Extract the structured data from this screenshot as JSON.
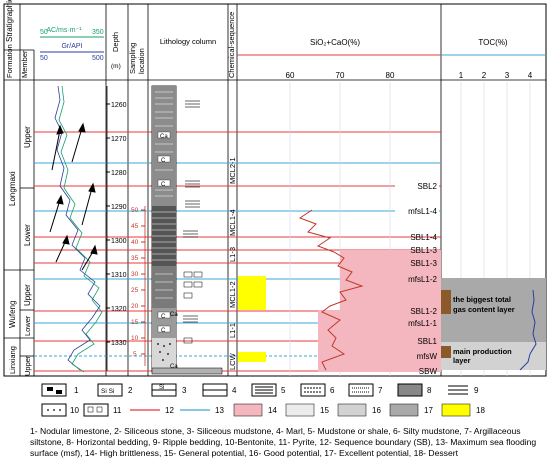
{
  "headers": {
    "stratigraphic_system": "Stratigraphic system",
    "formation": "Formation",
    "member": "Member",
    "ac_label": "AC/ms·m⁻¹",
    "ac_min": "50",
    "ac_max": "350",
    "gr_label": "Gr/API",
    "gr_min": "50",
    "gr_max": "500",
    "depth": "Depth",
    "depth_unit": "(m)",
    "sampling": "Sampling location",
    "lithology": "Lithology column",
    "chemical_sequence": "Chemical-sequence",
    "sio2": "SiO₂+CaO(%)",
    "toc": "TOC(%)"
  },
  "sio2_ticks": [
    "60",
    "70",
    "80"
  ],
  "toc_ticks": [
    "1",
    "2",
    "3",
    "4"
  ],
  "formations": [
    "Longmaxi",
    "Wufeng",
    "Linxiang"
  ],
  "members": [
    "Upper",
    "Lower",
    "Upper",
    "Lower",
    "Upper"
  ],
  "depth_ticks": [
    "1260",
    "1270",
    "1280",
    "1290",
    "1300",
    "1310",
    "1320",
    "1330"
  ],
  "sample_ticks": [
    "50",
    "45",
    "40",
    "35",
    "30",
    "25",
    "20",
    "15",
    "10",
    "5"
  ],
  "sequences": [
    "MCL2-1",
    "MCL1-4",
    "L1-3",
    "MCL1-2",
    "L1-1",
    "LCW"
  ],
  "boundaries": [
    "SBL2",
    "mfsL1-4",
    "SBL1-4",
    "SBL1-3",
    "SBL1-3",
    "mfsL1-2",
    "SBL1-2",
    "mfsL1-1",
    "SBL1",
    "mfsW",
    "SBW"
  ],
  "annotations": {
    "gas": "the biggest total gas content layer",
    "production": "main production layer"
  },
  "lith_labels": [
    "Ca",
    "C",
    "C",
    "C",
    "C",
    "Ca",
    "Ca"
  ],
  "legend_numbers": [
    "1",
    "2",
    "3",
    "4",
    "5",
    "6",
    "7",
    "8",
    "9",
    "10",
    "11",
    "12",
    "13",
    "14",
    "15",
    "16",
    "17",
    "18"
  ],
  "legend_symbols": {
    "si": "Si Si",
    "si2": "Si"
  },
  "legend_text": "1- Nodular limestone, 2- Siliceous stone, 3- Siliceous mudstone, 4- Marl, 5- Mudstone or shale, 6- Silty mudstone, 7- Argillaceous siltstone, 8- Horizontal bedding, 9- Ripple bedding, 10-Bentonite, 11- Pyrite, 12- Sequence boundary (SB), 13- Maximum sea flooding surface (msf), 14- High brittleness, 15- General potential, 16- Good potential, 17- Excellent potential, 18- Dessert",
  "colors": {
    "sb_line": "#e8383d",
    "msf_line": "#3ea7d9",
    "high_brittleness": "#f4b7bf",
    "general": "#ececec",
    "good": "#d2d2d2",
    "excellent": "#a9a9a9",
    "dessert": "#ffff00",
    "brown": "#8b5a2b"
  }
}
